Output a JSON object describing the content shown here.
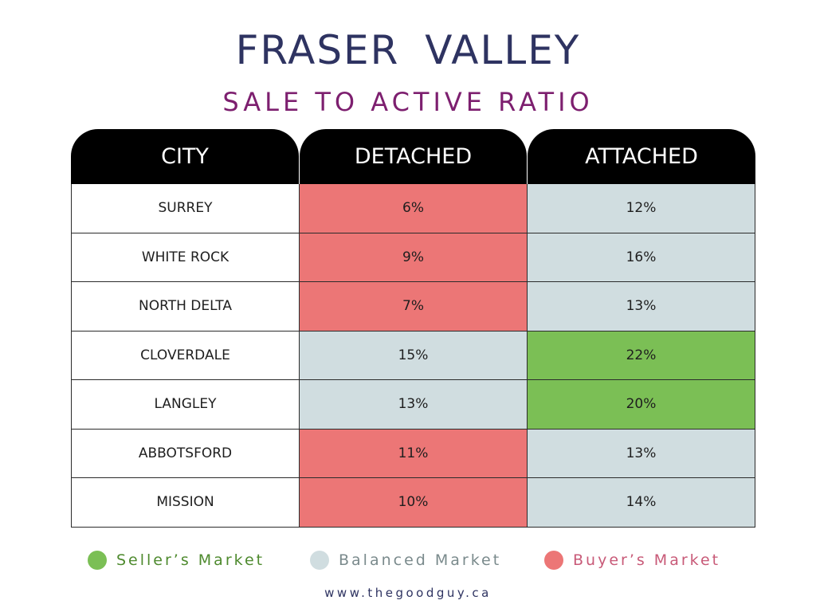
{
  "header": {
    "title": "FRASER  VALLEY",
    "subtitle": "SALE TO ACTIVE RATIO"
  },
  "colors": {
    "title": "#2e3361",
    "subtitle": "#7d1f6f",
    "header_bg": "#000000",
    "sellers_market": "#7bbf55",
    "balanced_market": "#d0dde0",
    "buyers_market": "#ec7676",
    "city_cell": "#ffffff",
    "legend_sellers_text": "#4e8a2e",
    "legend_balanced_text": "#7a8a8c",
    "legend_buyers_text": "#c85a78",
    "footer": "#2e3361"
  },
  "chart_data": {
    "type": "table",
    "title": "FRASER  VALLEY",
    "subtitle": "SALE TO ACTIVE RATIO",
    "columns": [
      "CITY",
      "DETACHED",
      "ATTACHED"
    ],
    "rows": [
      {
        "city": "SURREY",
        "detached": "6%",
        "detached_market": "buyers",
        "attached": "12%",
        "attached_market": "balanced"
      },
      {
        "city": "WHITE ROCK",
        "detached": "9%",
        "detached_market": "buyers",
        "attached": "16%",
        "attached_market": "balanced"
      },
      {
        "city": "NORTH DELTA",
        "detached": "7%",
        "detached_market": "buyers",
        "attached": "13%",
        "attached_market": "balanced"
      },
      {
        "city": "CLOVERDALE",
        "detached": "15%",
        "detached_market": "balanced",
        "attached": "22%",
        "attached_market": "sellers"
      },
      {
        "city": "LANGLEY",
        "detached": "13%",
        "detached_market": "balanced",
        "attached": "20%",
        "attached_market": "sellers"
      },
      {
        "city": "ABBOTSFORD",
        "detached": "11%",
        "detached_market": "buyers",
        "attached": "13%",
        "attached_market": "balanced"
      },
      {
        "city": "MISSION",
        "detached": "10%",
        "detached_market": "buyers",
        "attached": "14%",
        "attached_market": "balanced"
      }
    ],
    "legend": [
      {
        "key": "sellers",
        "label": "Seller’s Market"
      },
      {
        "key": "balanced",
        "label": "Balanced Market"
      },
      {
        "key": "buyers",
        "label": "Buyer’s Market"
      }
    ]
  },
  "footer": {
    "website": "www.thegoodguy.ca"
  }
}
